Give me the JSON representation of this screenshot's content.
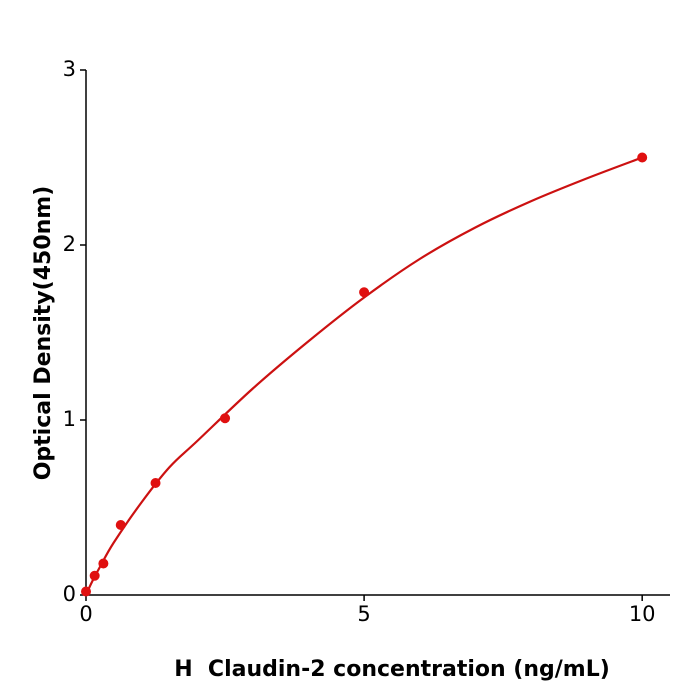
{
  "chart_data": {
    "type": "scatter",
    "xlabel": "H  Claudin-2 concentration (ng/mL)",
    "ylabel": "Optical Density(450nm)",
    "x": [
      0,
      0.156,
      0.3125,
      0.625,
      1.25,
      2.5,
      5,
      10
    ],
    "values": [
      0.02,
      0.11,
      0.18,
      0.4,
      0.64,
      1.01,
      1.73,
      2.5
    ],
    "color": "#e01010",
    "curve": {
      "x": [
        0,
        0.1,
        0.25,
        0.5,
        1,
        1.5,
        2,
        3,
        4,
        5,
        6,
        7,
        8,
        9,
        10
      ],
      "values": [
        0,
        0.07,
        0.16,
        0.3,
        0.53,
        0.73,
        0.88,
        1.18,
        1.45,
        1.7,
        1.92,
        2.1,
        2.25,
        2.38,
        2.5
      ],
      "color": "#cc1111"
    },
    "xlim": [
      0,
      10.5
    ],
    "xticks": [
      0,
      5,
      10
    ],
    "ylim": [
      0,
      3
    ],
    "yticks": [
      0,
      1,
      2,
      3
    ]
  }
}
